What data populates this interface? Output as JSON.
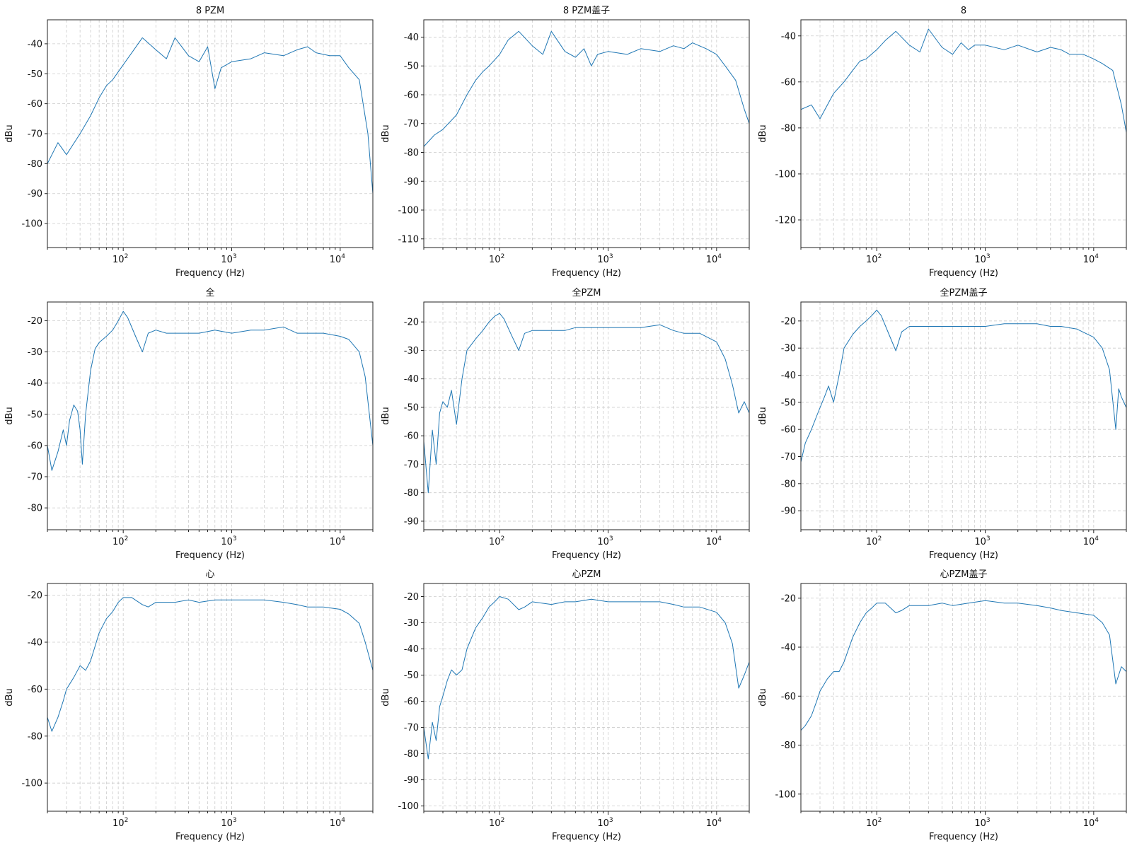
{
  "figure": {
    "colors": {
      "line": "#1f77b4",
      "grid": "#cccccc",
      "axes": "#222222"
    }
  },
  "chart_data": [
    {
      "type": "line",
      "title": "8 PZM",
      "xlabel": "Frequency (Hz)",
      "ylabel": "dBu",
      "xscale": "log",
      "xlim": [
        20,
        20000
      ],
      "ylim": [
        -108,
        -32
      ],
      "xticks": [
        100,
        1000,
        10000
      ],
      "xtick_labels": [
        "10^2",
        "10^3",
        "10^4"
      ],
      "yticks": [
        -40,
        -50,
        -60,
        -70,
        -80,
        -90,
        -100
      ],
      "grid": true,
      "line_color": "#1f77b4",
      "x": [
        20,
        25,
        30,
        40,
        50,
        60,
        70,
        80,
        100,
        120,
        150,
        200,
        250,
        300,
        400,
        500,
        600,
        700,
        800,
        1000,
        1500,
        2000,
        3000,
        4000,
        5000,
        6000,
        8000,
        10000,
        12000,
        15000,
        18000,
        20000
      ],
      "y": [
        -80,
        -73,
        -77,
        -70,
        -64,
        -58,
        -54,
        -52,
        -47,
        -43,
        -38,
        -42,
        -45,
        -38,
        -44,
        -46,
        -41,
        -55,
        -48,
        -46,
        -45,
        -43,
        -44,
        -42,
        -41,
        -43,
        -44,
        -44,
        -48,
        -52,
        -70,
        -90
      ],
      "series_names": []
    },
    {
      "type": "line",
      "title": "8 PZM盖子",
      "xlabel": "Frequency (Hz)",
      "ylabel": "dBu",
      "xscale": "log",
      "xlim": [
        20,
        20000
      ],
      "ylim": [
        -113,
        -34
      ],
      "xticks": [
        100,
        1000,
        10000
      ],
      "xtick_labels": [
        "10^2",
        "10^3",
        "10^4"
      ],
      "yticks": [
        -40,
        -50,
        -60,
        -70,
        -80,
        -90,
        -100,
        -110
      ],
      "grid": true,
      "line_color": "#1f77b4",
      "x": [
        20,
        25,
        30,
        40,
        50,
        60,
        70,
        80,
        100,
        120,
        150,
        200,
        250,
        300,
        400,
        500,
        600,
        700,
        800,
        1000,
        1500,
        2000,
        3000,
        4000,
        5000,
        6000,
        8000,
        10000,
        12000,
        15000,
        18000,
        20000
      ],
      "y": [
        -78,
        -74,
        -72,
        -67,
        -60,
        -55,
        -52,
        -50,
        -46,
        -41,
        -38,
        -43,
        -46,
        -38,
        -45,
        -47,
        -44,
        -50,
        -46,
        -45,
        -46,
        -44,
        -45,
        -43,
        -44,
        -42,
        -44,
        -46,
        -50,
        -55,
        -65,
        -70
      ],
      "series_names": []
    },
    {
      "type": "line",
      "title": "8",
      "xlabel": "Frequency (Hz)",
      "ylabel": "dBu",
      "xscale": "log",
      "xlim": [
        20,
        20000
      ],
      "ylim": [
        -132,
        -33
      ],
      "xticks": [
        100,
        1000,
        10000
      ],
      "xtick_labels": [
        "10^2",
        "10^3",
        "10^4"
      ],
      "yticks": [
        -40,
        -60,
        -80,
        -100,
        -120
      ],
      "grid": true,
      "line_color": "#1f77b4",
      "x": [
        20,
        25,
        30,
        40,
        50,
        60,
        70,
        80,
        100,
        120,
        150,
        200,
        250,
        300,
        400,
        500,
        600,
        700,
        800,
        1000,
        1500,
        2000,
        3000,
        4000,
        5000,
        6000,
        8000,
        10000,
        12000,
        15000,
        18000,
        20000
      ],
      "y": [
        -72,
        -70,
        -76,
        -65,
        -60,
        -55,
        -51,
        -50,
        -46,
        -42,
        -38,
        -44,
        -47,
        -37,
        -45,
        -48,
        -43,
        -46,
        -44,
        -44,
        -46,
        -44,
        -47,
        -45,
        -46,
        -48,
        -48,
        -50,
        -52,
        -55,
        -70,
        -82
      ],
      "series_names": []
    },
    {
      "type": "line",
      "title": "全",
      "xlabel": "Frequency (Hz)",
      "ylabel": "dBu",
      "xscale": "log",
      "xlim": [
        20,
        20000
      ],
      "ylim": [
        -87,
        -14
      ],
      "xticks": [
        100,
        1000,
        10000
      ],
      "xtick_labels": [
        "10^2",
        "10^3",
        "10^4"
      ],
      "yticks": [
        -20,
        -30,
        -40,
        -50,
        -60,
        -70,
        -80
      ],
      "grid": true,
      "line_color": "#1f77b4",
      "x": [
        20,
        22,
        25,
        28,
        30,
        32,
        35,
        38,
        40,
        42,
        45,
        50,
        55,
        60,
        70,
        80,
        90,
        100,
        110,
        130,
        150,
        170,
        200,
        250,
        300,
        400,
        500,
        700,
        1000,
        1500,
        2000,
        3000,
        4000,
        5000,
        7000,
        10000,
        12000,
        15000,
        17000,
        20000
      ],
      "y": [
        -60,
        -68,
        -62,
        -55,
        -60,
        -52,
        -47,
        -49,
        -55,
        -66,
        -50,
        -36,
        -29,
        -27,
        -25,
        -23,
        -20,
        -17,
        -19,
        -25,
        -30,
        -24,
        -23,
        -24,
        -24,
        -24,
        -24,
        -23,
        -24,
        -23,
        -23,
        -22,
        -24,
        -24,
        -24,
        -25,
        -26,
        -30,
        -38,
        -60
      ],
      "series_names": []
    },
    {
      "type": "line",
      "title": "全PZM",
      "xlabel": "Frequency (Hz)",
      "ylabel": "dBu",
      "xscale": "log",
      "xlim": [
        20,
        20000
      ],
      "ylim": [
        -93,
        -13
      ],
      "xticks": [
        100,
        1000,
        10000
      ],
      "xtick_labels": [
        "10^2",
        "10^3",
        "10^4"
      ],
      "yticks": [
        -20,
        -30,
        -40,
        -50,
        -60,
        -70,
        -80,
        -90
      ],
      "grid": true,
      "line_color": "#1f77b4",
      "x": [
        20,
        22,
        24,
        26,
        28,
        30,
        33,
        36,
        40,
        45,
        50,
        60,
        70,
        80,
        90,
        100,
        110,
        130,
        150,
        170,
        200,
        300,
        400,
        500,
        700,
        1000,
        1500,
        2000,
        3000,
        4000,
        5000,
        7000,
        10000,
        12000,
        14000,
        16000,
        18000,
        20000
      ],
      "y": [
        -62,
        -80,
        -58,
        -70,
        -52,
        -48,
        -50,
        -44,
        -56,
        -40,
        -30,
        -26,
        -23,
        -20,
        -18,
        -17,
        -19,
        -25,
        -30,
        -24,
        -23,
        -23,
        -23,
        -22,
        -22,
        -22,
        -22,
        -22,
        -21,
        -23,
        -24,
        -24,
        -27,
        -33,
        -42,
        -52,
        -48,
        -52
      ],
      "series_names": []
    },
    {
      "type": "line",
      "title": "全PZM盖子",
      "xlabel": "Frequency (Hz)",
      "ylabel": "dBu",
      "xscale": "log",
      "xlim": [
        20,
        20000
      ],
      "ylim": [
        -97,
        -13
      ],
      "xticks": [
        100,
        1000,
        10000
      ],
      "xtick_labels": [
        "10^2",
        "10^3",
        "10^4"
      ],
      "yticks": [
        -20,
        -30,
        -40,
        -50,
        -60,
        -70,
        -80,
        -90
      ],
      "grid": true,
      "line_color": "#1f77b4",
      "x": [
        20,
        22,
        25,
        28,
        30,
        33,
        36,
        40,
        45,
        50,
        60,
        70,
        80,
        90,
        100,
        110,
        130,
        150,
        170,
        200,
        300,
        400,
        500,
        700,
        1000,
        1500,
        2000,
        3000,
        4000,
        5000,
        7000,
        10000,
        12000,
        14000,
        16000,
        17000,
        18000,
        20000
      ],
      "y": [
        -72,
        -65,
        -60,
        -55,
        -52,
        -48,
        -44,
        -50,
        -40,
        -30,
        -25,
        -22,
        -20,
        -18,
        -16,
        -18,
        -25,
        -31,
        -24,
        -22,
        -22,
        -22,
        -22,
        -22,
        -22,
        -21,
        -21,
        -21,
        -22,
        -22,
        -23,
        -26,
        -30,
        -38,
        -60,
        -45,
        -48,
        -52
      ],
      "series_names": []
    },
    {
      "type": "line",
      "title": "心",
      "xlabel": "Frequency (Hz)",
      "ylabel": "dBu",
      "xscale": "log",
      "xlim": [
        20,
        20000
      ],
      "ylim": [
        -112,
        -15
      ],
      "xticks": [
        100,
        1000,
        10000
      ],
      "xtick_labels": [
        "10^2",
        "10^3",
        "10^4"
      ],
      "yticks": [
        -20,
        -40,
        -60,
        -80,
        -100
      ],
      "grid": true,
      "line_color": "#1f77b4",
      "x": [
        20,
        22,
        25,
        28,
        30,
        35,
        40,
        45,
        50,
        60,
        70,
        80,
        90,
        100,
        120,
        150,
        170,
        200,
        300,
        400,
        500,
        700,
        1000,
        1500,
        2000,
        3000,
        4000,
        5000,
        7000,
        10000,
        12000,
        15000,
        17000,
        20000
      ],
      "y": [
        -72,
        -78,
        -72,
        -65,
        -60,
        -55,
        -50,
        -52,
        -48,
        -36,
        -30,
        -27,
        -23,
        -21,
        -21,
        -24,
        -25,
        -23,
        -23,
        -22,
        -23,
        -22,
        -22,
        -22,
        -22,
        -23,
        -24,
        -25,
        -25,
        -26,
        -28,
        -32,
        -40,
        -52
      ],
      "series_names": []
    },
    {
      "type": "line",
      "title": "心PZM",
      "xlabel": "Frequency (Hz)",
      "ylabel": "dBu",
      "xscale": "log",
      "xlim": [
        20,
        20000
      ],
      "ylim": [
        -102,
        -15
      ],
      "xticks": [
        100,
        1000,
        10000
      ],
      "xtick_labels": [
        "10^2",
        "10^3",
        "10^4"
      ],
      "yticks": [
        -20,
        -30,
        -40,
        -50,
        -60,
        -70,
        -80,
        -90,
        -100
      ],
      "grid": true,
      "line_color": "#1f77b4",
      "x": [
        20,
        22,
        24,
        26,
        28,
        30,
        33,
        36,
        40,
        45,
        50,
        60,
        70,
        80,
        90,
        100,
        120,
        150,
        170,
        200,
        300,
        400,
        500,
        700,
        1000,
        1500,
        2000,
        3000,
        4000,
        5000,
        7000,
        10000,
        12000,
        14000,
        16000,
        18000,
        20000
      ],
      "y": [
        -70,
        -82,
        -68,
        -75,
        -62,
        -58,
        -52,
        -48,
        -50,
        -48,
        -40,
        -32,
        -28,
        -24,
        -22,
        -20,
        -21,
        -25,
        -24,
        -22,
        -23,
        -22,
        -22,
        -21,
        -22,
        -22,
        -22,
        -22,
        -23,
        -24,
        -24,
        -26,
        -30,
        -38,
        -55,
        -50,
        -45
      ],
      "series_names": []
    },
    {
      "type": "line",
      "title": "心PZM盖子",
      "xlabel": "Frequency (Hz)",
      "ylabel": "dBu",
      "xscale": "log",
      "xlim": [
        20,
        20000
      ],
      "ylim": [
        -107,
        -14
      ],
      "xticks": [
        100,
        1000,
        10000
      ],
      "xtick_labels": [
        "10^2",
        "10^3",
        "10^4"
      ],
      "yticks": [
        -20,
        -40,
        -60,
        -80,
        -100
      ],
      "grid": true,
      "line_color": "#1f77b4",
      "x": [
        20,
        22,
        25,
        28,
        30,
        35,
        40,
        45,
        50,
        60,
        70,
        80,
        90,
        100,
        120,
        150,
        170,
        200,
        300,
        400,
        500,
        700,
        1000,
        1500,
        2000,
        3000,
        4000,
        5000,
        7000,
        10000,
        12000,
        14000,
        16000,
        18000,
        20000
      ],
      "y": [
        -74,
        -72,
        -68,
        -62,
        -58,
        -53,
        -50,
        -50,
        -46,
        -36,
        -30,
        -26,
        -24,
        -22,
        -22,
        -26,
        -25,
        -23,
        -23,
        -22,
        -23,
        -22,
        -21,
        -22,
        -22,
        -23,
        -24,
        -25,
        -26,
        -27,
        -30,
        -35,
        -55,
        -48,
        -50
      ],
      "series_names": []
    }
  ]
}
